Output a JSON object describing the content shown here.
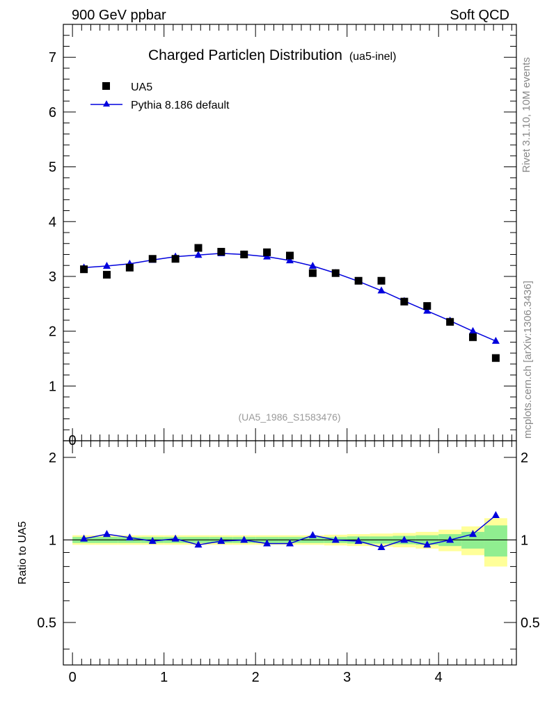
{
  "header": {
    "left": "900 GeV ppbar",
    "right": "Soft QCD",
    "side_top": "Rivet 3.1.10,  10M events",
    "side_bottom": "mcplots.cern.ch [arXiv:1306.3436]"
  },
  "chart_data": [
    {
      "type": "scatter",
      "title": "Charged Particleη Distribution",
      "title_suffix": "(ua5-inel)",
      "watermark": "(UA5_1986_S1583476)",
      "xlabel": "",
      "ylabel": "",
      "xlim": [
        -0.1,
        4.85
      ],
      "ylim": [
        0,
        7.6
      ],
      "y_ticks": [
        1,
        2,
        3,
        4,
        5,
        6,
        7
      ],
      "y_tick_labels": [
        "1",
        "2",
        "3",
        "4",
        "5",
        "6",
        "7"
      ],
      "x": [
        0.125,
        0.375,
        0.625,
        0.875,
        1.125,
        1.375,
        1.625,
        1.875,
        2.125,
        2.375,
        2.625,
        2.875,
        3.125,
        3.375,
        3.625,
        3.875,
        4.125,
        4.375,
        4.625
      ],
      "series": [
        {
          "name": "UA5",
          "marker": "square",
          "color": "#000000",
          "values": [
            3.13,
            3.03,
            3.16,
            3.32,
            3.32,
            3.52,
            3.45,
            3.4,
            3.44,
            3.38,
            3.06,
            3.06,
            2.92,
            2.92,
            2.54,
            2.46,
            2.17,
            1.89,
            1.51
          ]
        },
        {
          "name": "Pythia 8.186 default",
          "marker": "triangle",
          "color": "#0000dd",
          "values": [
            3.16,
            3.19,
            3.23,
            3.3,
            3.36,
            3.39,
            3.42,
            3.4,
            3.36,
            3.29,
            3.19,
            3.06,
            2.91,
            2.74,
            2.55,
            2.37,
            2.19,
            2.0,
            1.82
          ]
        }
      ]
    },
    {
      "type": "line",
      "title": "",
      "xlabel": "",
      "ylabel": "Ratio to UA5",
      "xlim": [
        -0.1,
        4.85
      ],
      "ylim": [
        0.35,
        2.3
      ],
      "y_ticks": [
        0.5,
        1,
        2
      ],
      "y_tick_labels": [
        "0.5",
        "1",
        "2"
      ],
      "x_ticks": [
        0,
        1,
        2,
        3,
        4
      ],
      "x_tick_labels": [
        "0",
        "1",
        "2",
        "3",
        "4"
      ],
      "x": [
        0.125,
        0.375,
        0.625,
        0.875,
        1.125,
        1.375,
        1.625,
        1.875,
        2.125,
        2.375,
        2.625,
        2.875,
        3.125,
        3.375,
        3.625,
        3.875,
        4.125,
        4.375,
        4.625
      ],
      "ratio": [
        1.01,
        1.05,
        1.02,
        0.99,
        1.01,
        0.96,
        0.99,
        1.0,
        0.97,
        0.97,
        1.04,
        1.0,
        0.99,
        0.94,
        1.0,
        0.96,
        1.0,
        1.05,
        1.23
      ],
      "band_green": [
        0.025,
        0.025,
        0.025,
        0.025,
        0.025,
        0.025,
        0.025,
        0.025,
        0.025,
        0.025,
        0.025,
        0.025,
        0.03,
        0.03,
        0.035,
        0.04,
        0.05,
        0.07,
        0.13
      ],
      "band_yellow": [
        0.04,
        0.04,
        0.04,
        0.04,
        0.04,
        0.04,
        0.04,
        0.04,
        0.04,
        0.04,
        0.04,
        0.045,
        0.05,
        0.055,
        0.06,
        0.07,
        0.09,
        0.12,
        0.2
      ],
      "band_colors": {
        "green": "#90ee90",
        "yellow": "#ffff99"
      }
    }
  ]
}
